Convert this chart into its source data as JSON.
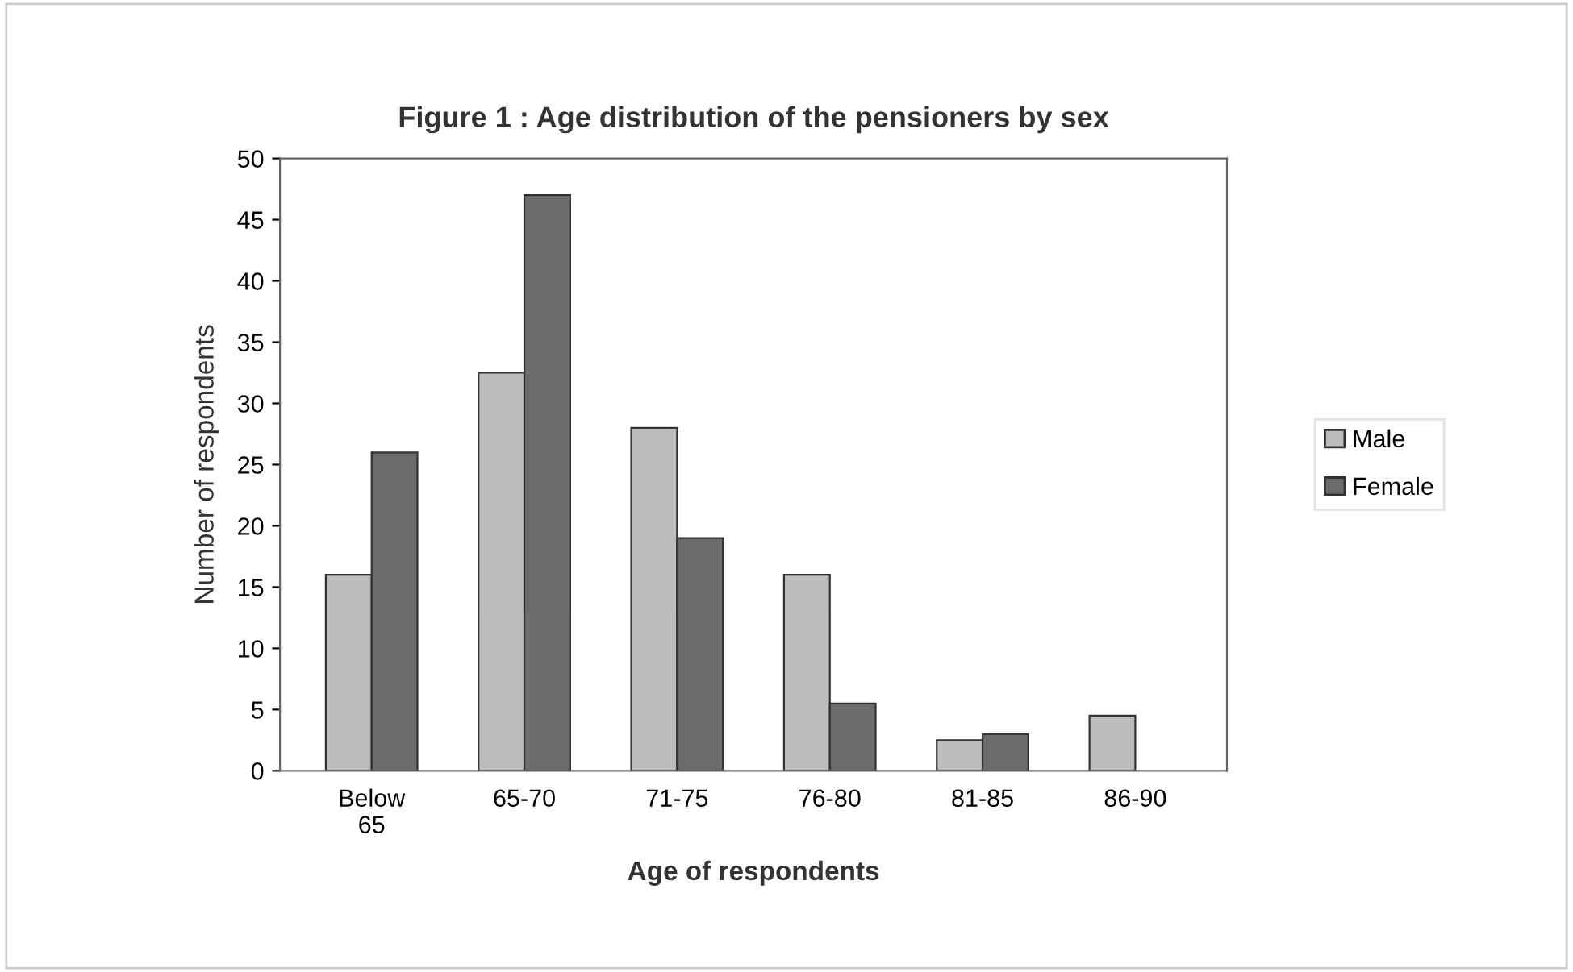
{
  "chart_data": {
    "type": "bar",
    "title": "Figure 1 : Age distribution of the pensioners by sex",
    "xlabel": "Age of respondents",
    "ylabel": "Number of respondents",
    "categories": [
      "Below\n65",
      "65-70",
      "71-75",
      "76-80",
      "81-85",
      "86-90"
    ],
    "series": [
      {
        "name": "Male",
        "color": "#bdbdbd",
        "values": [
          16,
          32.5,
          28,
          16,
          2.5,
          4.5
        ]
      },
      {
        "name": "Female",
        "color": "#6b6b6b",
        "values": [
          26,
          47,
          19,
          5.5,
          3,
          null
        ]
      }
    ],
    "ylim": [
      0,
      50
    ],
    "yticks": [
      0,
      5,
      10,
      15,
      20,
      25,
      30,
      35,
      40,
      45,
      50
    ],
    "grid": false,
    "legend": "right"
  }
}
